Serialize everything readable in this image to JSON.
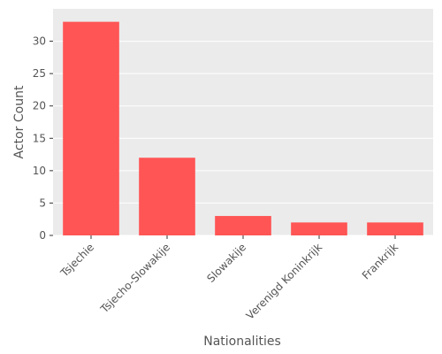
{
  "chart_data": {
    "type": "bar",
    "title": "",
    "xlabel": "Nationalities",
    "ylabel": "Actor Count",
    "categories": [
      "Tsjechie",
      "Tsjecho-Slowakije",
      "Slowakije",
      "Verenigd Koninkrijk",
      "Frankrijk"
    ],
    "values": [
      33,
      12,
      3,
      2,
      2
    ],
    "ylim": [
      0,
      35
    ],
    "yticks": [
      0,
      5,
      10,
      15,
      20,
      25,
      30
    ],
    "grid": true,
    "legend": "none",
    "bar_color": "#ff5555",
    "plot_background": "#ebebeb",
    "grid_color": "#ffffff"
  }
}
